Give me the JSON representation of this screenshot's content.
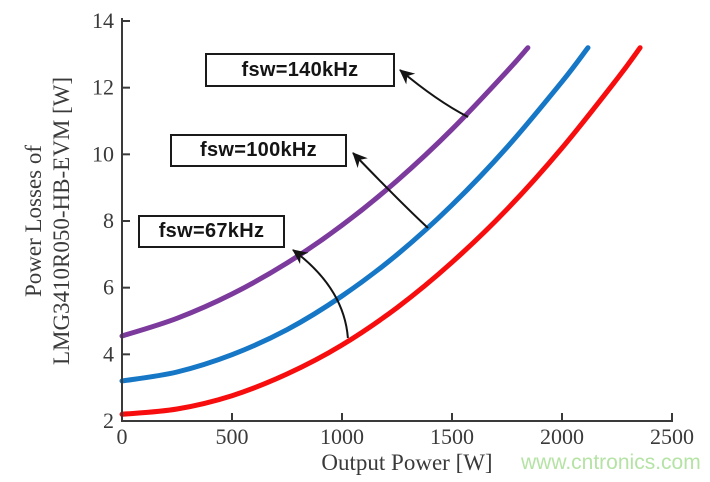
{
  "figure": {
    "watermark": {
      "text": "www.cntronics.com",
      "color": "#b5e3a5"
    }
  },
  "chart_data": {
    "type": "line",
    "title": "",
    "xlabel": "Output Power [W]",
    "ylabel_lines": [
      "Power Losses of",
      "LMG3410R050-HB-EVM [W]"
    ],
    "xlim": [
      0,
      2500
    ],
    "ylim": [
      2,
      14
    ],
    "xticks": [
      "0",
      "500",
      "1000",
      "1500",
      "2000",
      "2500"
    ],
    "yticks": [
      "2",
      "4",
      "6",
      "8",
      "10",
      "12",
      "14"
    ],
    "grid": false,
    "legend_position": "inline-annotation-boxes",
    "axis_color": "#3a3a3a",
    "series": [
      {
        "name": "fsw=140kHz",
        "color": "#7c3a9d",
        "x": [
          0,
          250,
          500,
          750,
          1000,
          1250,
          1500,
          1750,
          1845
        ],
        "y": [
          4.55,
          5.08,
          5.81,
          6.74,
          7.87,
          9.21,
          10.75,
          12.49,
          13.2
        ]
      },
      {
        "name": "fsw=100kHz",
        "color": "#1577c6",
        "x": [
          0,
          250,
          500,
          750,
          1000,
          1250,
          1500,
          1750,
          2000,
          2118
        ],
        "y": [
          3.2,
          3.47,
          3.99,
          4.74,
          5.75,
          6.99,
          8.48,
          10.21,
          12.18,
          13.2
        ]
      },
      {
        "name": "fsw=67kHz",
        "color": "#f70d0d",
        "x": [
          0,
          250,
          500,
          750,
          1000,
          1250,
          1500,
          1750,
          2000,
          2250,
          2355
        ],
        "y": [
          2.2,
          2.36,
          2.76,
          3.41,
          4.28,
          5.4,
          6.76,
          8.35,
          10.19,
          12.26,
          13.2
        ]
      }
    ],
    "annotations": [
      {
        "label": "fsw=140kHz",
        "target_series": "fsw=140kHz",
        "points_to": {
          "x": 1573,
          "y": 11.12
        }
      },
      {
        "label": "fsw=100kHz",
        "target_series": "fsw=100kHz",
        "points_to": {
          "x": 1391,
          "y": 7.79
        }
      },
      {
        "label": "fsw=67kHz",
        "target_series": "fsw=67kHz",
        "points_to": {
          "x": 1027,
          "y": 4.49
        }
      }
    ]
  }
}
